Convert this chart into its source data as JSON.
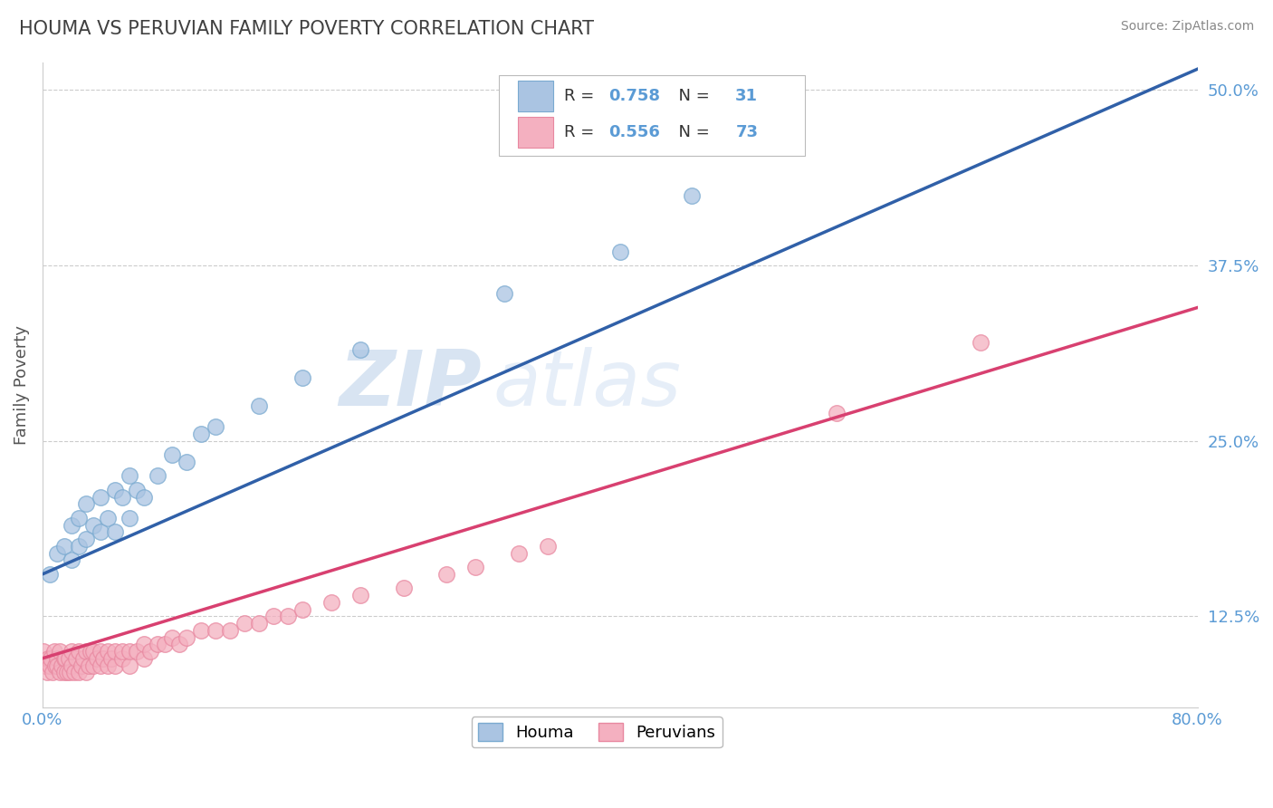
{
  "title": "HOUMA VS PERUVIAN FAMILY POVERTY CORRELATION CHART",
  "source": "Source: ZipAtlas.com",
  "ylabel_label": "Family Poverty",
  "legend_labels": [
    "Houma",
    "Peruvians"
  ],
  "houma_R": "0.758",
  "houma_N": "31",
  "peruvian_R": "0.556",
  "peruvian_N": "73",
  "houma_color": "#aac4e2",
  "houma_edge_color": "#7aaad0",
  "houma_line_color": "#3060a8",
  "peruvian_color": "#f4b0c0",
  "peruvian_edge_color": "#e888a0",
  "peruvian_line_color": "#d84070",
  "background_color": "#ffffff",
  "title_color": "#404040",
  "title_fontsize": 15,
  "watermark_color": "#ccdcee",
  "tick_color": "#5b9bd5",
  "grid_color": "#cccccc",
  "houma_x": [
    0.005,
    0.01,
    0.015,
    0.02,
    0.02,
    0.025,
    0.025,
    0.03,
    0.03,
    0.035,
    0.04,
    0.04,
    0.045,
    0.05,
    0.05,
    0.055,
    0.06,
    0.06,
    0.065,
    0.07,
    0.08,
    0.09,
    0.1,
    0.11,
    0.12,
    0.15,
    0.18,
    0.22,
    0.32,
    0.4,
    0.45
  ],
  "houma_y": [
    0.155,
    0.17,
    0.175,
    0.165,
    0.19,
    0.175,
    0.195,
    0.18,
    0.205,
    0.19,
    0.185,
    0.21,
    0.195,
    0.185,
    0.215,
    0.21,
    0.195,
    0.225,
    0.215,
    0.21,
    0.225,
    0.24,
    0.235,
    0.255,
    0.26,
    0.275,
    0.295,
    0.315,
    0.355,
    0.385,
    0.425
  ],
  "peruvian_x": [
    0.001,
    0.002,
    0.003,
    0.004,
    0.005,
    0.006,
    0.007,
    0.008,
    0.009,
    0.01,
    0.01,
    0.012,
    0.012,
    0.013,
    0.015,
    0.015,
    0.016,
    0.017,
    0.018,
    0.019,
    0.02,
    0.02,
    0.022,
    0.023,
    0.025,
    0.025,
    0.027,
    0.028,
    0.03,
    0.03,
    0.032,
    0.033,
    0.035,
    0.035,
    0.038,
    0.04,
    0.04,
    0.042,
    0.045,
    0.045,
    0.048,
    0.05,
    0.05,
    0.055,
    0.055,
    0.06,
    0.06,
    0.065,
    0.07,
    0.07,
    0.075,
    0.08,
    0.085,
    0.09,
    0.095,
    0.1,
    0.11,
    0.12,
    0.13,
    0.14,
    0.15,
    0.16,
    0.17,
    0.18,
    0.2,
    0.22,
    0.25,
    0.28,
    0.3,
    0.33,
    0.35,
    0.55,
    0.65
  ],
  "peruvian_y": [
    0.1,
    0.09,
    0.085,
    0.095,
    0.09,
    0.095,
    0.085,
    0.1,
    0.09,
    0.095,
    0.09,
    0.085,
    0.1,
    0.09,
    0.095,
    0.085,
    0.095,
    0.085,
    0.095,
    0.085,
    0.09,
    0.1,
    0.085,
    0.095,
    0.085,
    0.1,
    0.09,
    0.095,
    0.085,
    0.1,
    0.09,
    0.1,
    0.09,
    0.1,
    0.095,
    0.09,
    0.1,
    0.095,
    0.09,
    0.1,
    0.095,
    0.09,
    0.1,
    0.095,
    0.1,
    0.09,
    0.1,
    0.1,
    0.095,
    0.105,
    0.1,
    0.105,
    0.105,
    0.11,
    0.105,
    0.11,
    0.115,
    0.115,
    0.115,
    0.12,
    0.12,
    0.125,
    0.125,
    0.13,
    0.135,
    0.14,
    0.145,
    0.155,
    0.16,
    0.17,
    0.175,
    0.27,
    0.32
  ],
  "xlim": [
    0.0,
    0.8
  ],
  "ylim": [
    0.06,
    0.52
  ],
  "yticks": [
    0.125,
    0.25,
    0.375,
    0.5
  ],
  "xticks": [
    0.0,
    0.8
  ],
  "houma_line_x0": 0.0,
  "houma_line_x1": 0.8,
  "houma_line_y0": 0.155,
  "houma_line_y1": 0.515,
  "peruvian_line_x0": 0.0,
  "peruvian_line_x1": 0.8,
  "peruvian_line_y0": 0.095,
  "peruvian_line_y1": 0.345
}
